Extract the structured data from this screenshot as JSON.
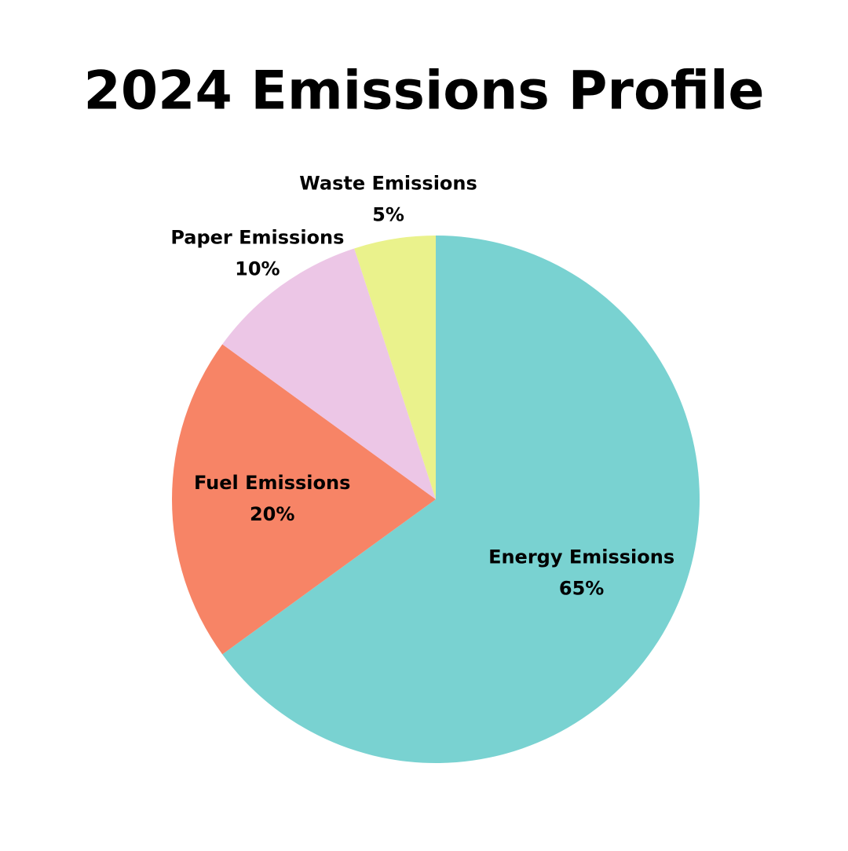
{
  "chart_data": {
    "type": "pie",
    "title": "2024 Emissions Profile",
    "categories": [
      "Energy Emissions",
      "Fuel Emissions",
      "Paper Emissions",
      "Waste Emissions"
    ],
    "values": [
      65,
      20,
      10,
      5
    ],
    "value_labels": [
      "65%",
      "20%",
      "10%",
      "5%"
    ],
    "colors": [
      "#79d2d1",
      "#f78466",
      "#ecc6e6",
      "#eaf28c"
    ]
  }
}
